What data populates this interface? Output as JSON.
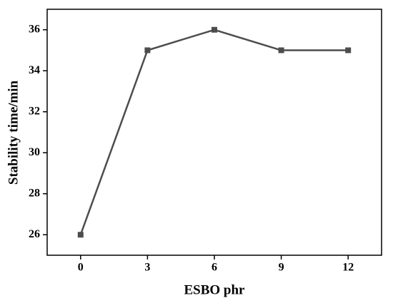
{
  "chart_data": {
    "type": "line",
    "xlabel": "ESBO phr",
    "ylabel": "Stability time/min",
    "x": [
      0,
      3,
      6,
      9,
      12
    ],
    "series": [
      {
        "color": "#4d4d4d",
        "values": [
          26,
          35,
          36,
          35,
          35
        ]
      }
    ],
    "xlim": [
      -1.5,
      13.5
    ],
    "xticks": [
      0,
      3,
      6,
      9,
      12
    ],
    "ylim": [
      25,
      37
    ],
    "yticks": [
      26,
      28,
      30,
      32,
      34,
      36
    ]
  }
}
